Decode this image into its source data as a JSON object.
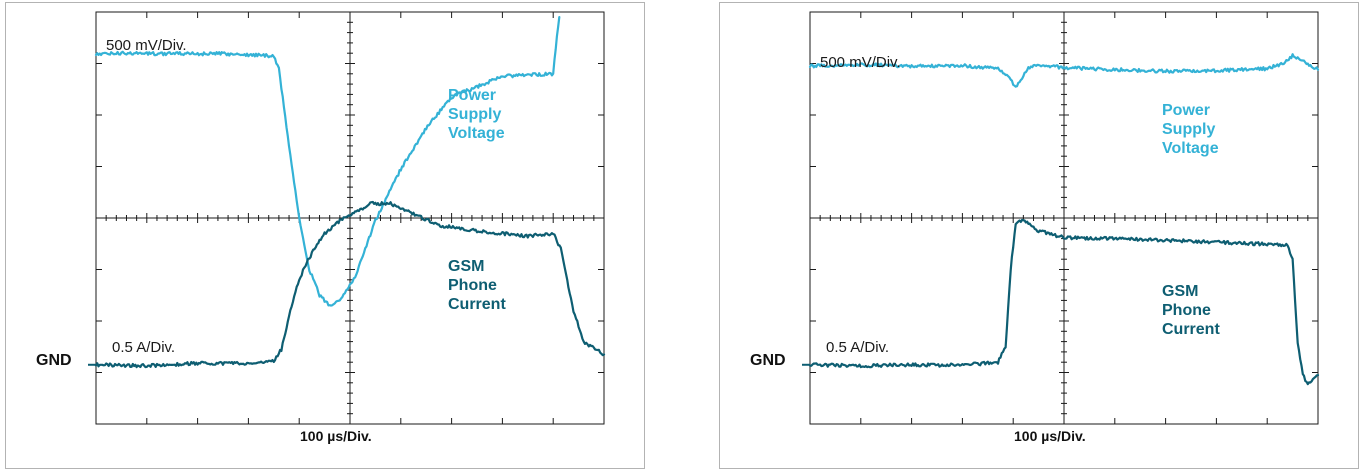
{
  "chart_data": [
    {
      "type": "line",
      "title": "",
      "xlabel": "100 µs/Div.",
      "voltage_scale": "500 mV/Div.",
      "current_scale": "0.5 A/Div.",
      "ground_label": "GND",
      "x_divisions": 10,
      "y_divisions": 8,
      "xlim": [
        0,
        10
      ],
      "ylim": [
        0,
        8
      ],
      "series": [
        {
          "name": "Power Supply Voltage",
          "name_lines": [
            "Power",
            "Supply",
            "Voltage"
          ],
          "color": "#34b2d6",
          "x": [
            0.0,
            0.5,
            1.5,
            2.5,
            3.5,
            3.6,
            3.8,
            4.0,
            4.2,
            4.4,
            4.6,
            4.8,
            4.9,
            5.1,
            5.3,
            5.5,
            6.0,
            6.5,
            7.0,
            8.0,
            9.0,
            9.05,
            9.12
          ],
          "y": [
            7.18,
            7.2,
            7.19,
            7.19,
            7.15,
            6.9,
            5.4,
            4.0,
            3.0,
            2.5,
            2.3,
            2.42,
            2.55,
            2.85,
            3.4,
            3.95,
            4.95,
            5.75,
            6.35,
            6.75,
            6.8,
            7.3,
            7.9
          ]
        },
        {
          "name": "GSM Phone Current",
          "name_lines": [
            "GSM",
            "Phone",
            "Current"
          ],
          "color": "#0e5e72",
          "x": [
            0.0,
            1.0,
            2.0,
            3.0,
            3.5,
            3.65,
            3.9,
            4.1,
            4.3,
            4.5,
            4.8,
            5.1,
            5.4,
            5.8,
            6.3,
            6.8,
            7.5,
            8.5,
            9.0,
            9.15,
            9.4,
            9.6,
            10.0
          ],
          "y": [
            1.15,
            1.13,
            1.18,
            1.17,
            1.22,
            1.45,
            2.5,
            3.05,
            3.4,
            3.7,
            3.95,
            4.1,
            4.28,
            4.28,
            4.05,
            3.85,
            3.75,
            3.65,
            3.7,
            3.4,
            2.2,
            1.6,
            1.35
          ]
        }
      ]
    },
    {
      "type": "line",
      "title": "",
      "xlabel": "100 µs/Div.",
      "voltage_scale": "500 mV/Div.",
      "current_scale": "0.5 A/Div.",
      "ground_label": "GND",
      "x_divisions": 10,
      "y_divisions": 8,
      "xlim": [
        0,
        10
      ],
      "ylim": [
        0,
        8
      ],
      "series": [
        {
          "name": "Power Supply Voltage",
          "name_lines": [
            "Power",
            "Supply",
            "Voltage"
          ],
          "color": "#34b2d6",
          "x": [
            0.0,
            1.0,
            2.0,
            3.0,
            3.7,
            3.9,
            4.05,
            4.15,
            4.3,
            4.5,
            5.0,
            6.0,
            7.0,
            8.0,
            9.0,
            9.3,
            9.5,
            9.7,
            10.0
          ],
          "y": [
            6.95,
            6.98,
            6.95,
            6.96,
            6.9,
            6.75,
            6.55,
            6.7,
            6.9,
            6.98,
            6.92,
            6.88,
            6.85,
            6.86,
            6.9,
            7.0,
            7.15,
            7.05,
            6.88
          ]
        },
        {
          "name": "GSM Phone Current",
          "name_lines": [
            "GSM",
            "Phone",
            "Current"
          ],
          "color": "#0e5e72",
          "x": [
            0.0,
            1.0,
            2.0,
            3.0,
            3.7,
            3.85,
            3.95,
            4.05,
            4.2,
            4.5,
            5.0,
            6.0,
            7.0,
            8.0,
            9.4,
            9.5,
            9.6,
            9.7,
            9.8,
            10.0
          ],
          "y": [
            1.15,
            1.13,
            1.15,
            1.14,
            1.2,
            1.5,
            3.0,
            3.9,
            3.95,
            3.75,
            3.62,
            3.6,
            3.57,
            3.53,
            3.48,
            3.2,
            1.6,
            0.95,
            0.78,
            0.95
          ]
        }
      ]
    }
  ]
}
